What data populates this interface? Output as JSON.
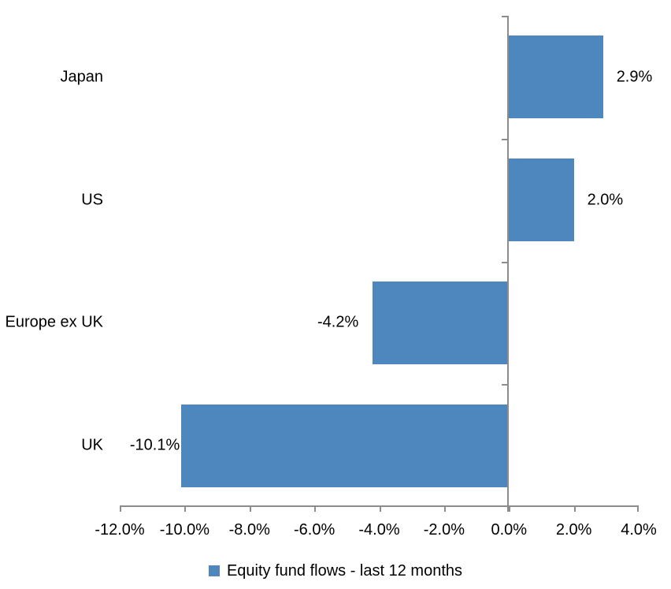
{
  "chart_data": {
    "type": "bar",
    "orientation": "horizontal",
    "title": "",
    "categories": [
      "Japan",
      "US",
      "Europe ex UK",
      "UK"
    ],
    "series": [
      {
        "name": "Equity fund flows - last 12 months",
        "values": [
          2.9,
          2.0,
          -4.2,
          -10.1
        ]
      }
    ],
    "data_labels": [
      "2.9%",
      "2.0%",
      "-4.2%",
      "-10.1%"
    ],
    "x_axis": {
      "tick_values": [
        -12,
        -10,
        -8,
        -6,
        -4,
        -2,
        0,
        2,
        4
      ],
      "tick_labels": [
        "-12.0%",
        "-10.0%",
        "-8.0%",
        "-6.0%",
        "-4.0%",
        "-2.0%",
        "0.0%",
        "2.0%",
        "4.0%"
      ],
      "xlim": [
        -12,
        4
      ]
    },
    "grid": false,
    "legend": {
      "position": "bottom",
      "marker": "square-icon",
      "label": "Equity fund flows - last 12 months"
    },
    "colors": {
      "bar": "#4E86BE",
      "axis": "#8C8C8C",
      "text": "#000000",
      "background": "#FFFFFF"
    }
  }
}
